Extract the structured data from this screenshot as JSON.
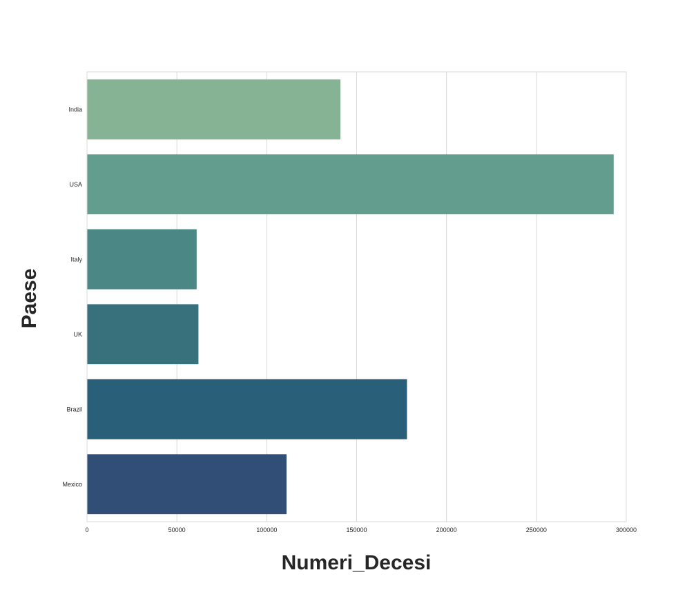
{
  "chart_data": {
    "type": "bar",
    "orientation": "horizontal",
    "categories": [
      "India",
      "USA",
      "Italy",
      "UK",
      "Brazil",
      "Mexico"
    ],
    "values": [
      141000,
      293000,
      61000,
      62000,
      178000,
      111000
    ],
    "colors": [
      "#86b394",
      "#639d8d",
      "#4a8785",
      "#38707c",
      "#2a5f7a",
      "#304e76"
    ],
    "title": "",
    "xlabel": "Numeri_Decesi",
    "ylabel": "Paese",
    "xlim": [
      0,
      300000
    ],
    "xticks": [
      0,
      50000,
      100000,
      150000,
      200000,
      250000,
      300000
    ],
    "xtick_labels": [
      "0",
      "50000",
      "100000",
      "150000",
      "200000",
      "250000",
      "300000"
    ],
    "grid": "vertical",
    "legend": "none"
  }
}
